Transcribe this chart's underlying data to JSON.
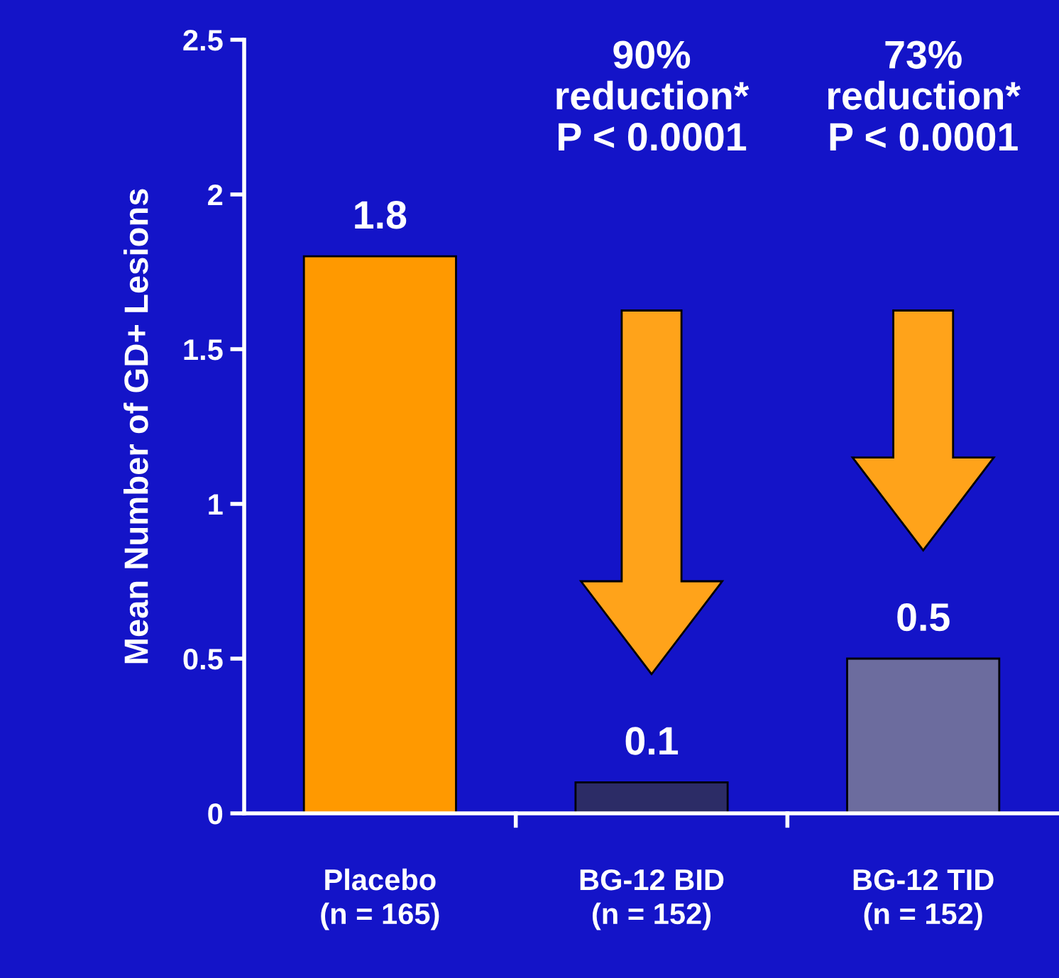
{
  "chart_data": {
    "type": "bar",
    "ylabel": "Mean Number of GD+ Lesions",
    "categories": [
      "Placebo\n(n = 165)",
      "BG-12 BID\n(n = 152)",
      "BG-12 TID\n(n = 152)"
    ],
    "values": [
      1.8,
      0.1,
      0.5
    ],
    "colors": [
      "#ff9900",
      "#2c2c66",
      "#6c6c9e"
    ],
    "ylim": [
      0,
      2.5
    ],
    "yticks": [
      0,
      0.5,
      1,
      1.5,
      2,
      2.5
    ],
    "data_labels": true,
    "grid": false,
    "annotations": [
      "90%\nreduction*\nP < 0.0001",
      "73%\nreduction*\nP < 0.0001"
    ]
  }
}
